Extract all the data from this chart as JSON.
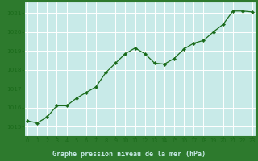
{
  "x": [
    0,
    1,
    2,
    3,
    4,
    5,
    6,
    7,
    8,
    9,
    10,
    11,
    12,
    13,
    14,
    15,
    16,
    17,
    18,
    19,
    20,
    21,
    22,
    23
  ],
  "y": [
    1015.3,
    1015.2,
    1015.5,
    1016.1,
    1016.1,
    1016.5,
    1016.8,
    1017.1,
    1017.85,
    1018.35,
    1018.85,
    1019.15,
    1018.85,
    1018.35,
    1018.3,
    1018.6,
    1019.1,
    1019.4,
    1019.55,
    1020.0,
    1020.4,
    1021.1,
    1021.1,
    1021.05
  ],
  "line_color": "#1a6b1a",
  "marker_color": "#1a6b1a",
  "bg_color": "#c8eae8",
  "plot_bg_color": "#c8eae8",
  "footer_bg_color": "#2d7a2d",
  "grid_color": "#ffffff",
  "axis_line_color": "#2d7a2d",
  "xlabel": "Graphe pression niveau de la mer (hPa)",
  "xlabel_color": "#c8eae8",
  "tick_label_color": "#1a6b1a",
  "ylim": [
    1014.5,
    1021.6
  ],
  "yticks": [
    1015,
    1016,
    1017,
    1018,
    1019,
    1020,
    1021
  ],
  "xlim": [
    -0.3,
    23.3
  ],
  "xticks": [
    0,
    1,
    2,
    3,
    4,
    5,
    6,
    7,
    8,
    9,
    10,
    11,
    12,
    13,
    14,
    15,
    16,
    17,
    18,
    19,
    20,
    21,
    22,
    23
  ]
}
